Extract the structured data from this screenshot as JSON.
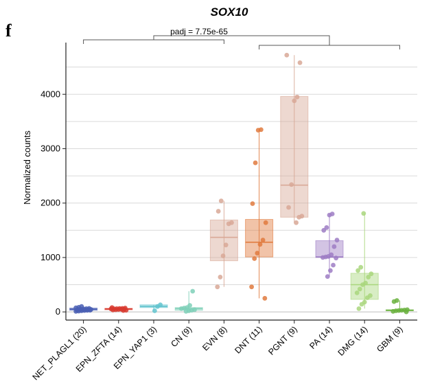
{
  "panel_label": "f",
  "chart_data": {
    "type": "box",
    "title": "SOX10",
    "xlabel": "",
    "ylabel": "Normalized counts",
    "ylim": [
      -150,
      4950
    ],
    "yticks": [
      0,
      1000,
      2000,
      3000,
      4000
    ],
    "grid": true,
    "annotation": {
      "text": "padj = 7.75e-65",
      "left_group": [
        0,
        4
      ],
      "right_group": [
        5,
        9
      ]
    },
    "groups": [
      {
        "label": "NET_PLAGL1 (20)",
        "color": "#4a5fb4",
        "box": [
          30,
          50,
          70
        ],
        "points": [
          10,
          15,
          20,
          25,
          28,
          30,
          32,
          35,
          38,
          40,
          42,
          45,
          48,
          50,
          55,
          60,
          65,
          75,
          85,
          100
        ]
      },
      {
        "label": "EPN_ZFTA (14)",
        "color": "#d83a2f",
        "box": [
          40,
          55,
          65
        ],
        "points": [
          25,
          30,
          35,
          40,
          45,
          48,
          50,
          55,
          58,
          60,
          62,
          65,
          70,
          80
        ]
      },
      {
        "label": "EPN_YAP1 (3)",
        "color": "#63c4cf",
        "box": [
          80,
          100,
          130
        ],
        "points": [
          20,
          100,
          130
        ]
      },
      {
        "label": "CN (9)",
        "color": "#7fd0b8",
        "box": [
          30,
          60,
          80
        ],
        "points": [
          10,
          20,
          30,
          40,
          60,
          70,
          80,
          120,
          380
        ]
      },
      {
        "label": "EVN (8)",
        "color": "#d8a896",
        "box": [
          940,
          1370,
          1690
        ],
        "points": [
          460,
          640,
          1030,
          1230,
          1620,
          1640,
          1850,
          2040
        ]
      },
      {
        "label": "DNT (11)",
        "color": "#e07a3e",
        "box": [
          1010,
          1280,
          1700
        ],
        "points": [
          250,
          460,
          980,
          1080,
          1240,
          1320,
          1640,
          1990,
          2740,
          3340,
          3350
        ]
      },
      {
        "label": "PGNT (9)",
        "color": "#d8a896",
        "box": [
          1740,
          2330,
          3960
        ],
        "points": [
          1640,
          1740,
          1760,
          1920,
          2340,
          3880,
          3950,
          4580,
          4720
        ]
      },
      {
        "label": "PA (14)",
        "color": "#9d7cc4",
        "box": [
          1000,
          1010,
          1310
        ],
        "points": [
          650,
          760,
          860,
          990,
          1000,
          1010,
          1020,
          1050,
          1200,
          1320,
          1500,
          1550,
          1780,
          1800
        ]
      },
      {
        "label": "DMG (14)",
        "color": "#a9d67c",
        "box": [
          230,
          500,
          710
        ],
        "points": [
          60,
          140,
          180,
          260,
          300,
          350,
          420,
          500,
          530,
          640,
          700,
          760,
          820,
          1810
        ]
      },
      {
        "label": "GBM (9)",
        "color": "#6ab23e",
        "box": [
          20,
          30,
          40
        ],
        "points": [
          0,
          10,
          20,
          25,
          30,
          35,
          40,
          190,
          210
        ]
      }
    ]
  }
}
